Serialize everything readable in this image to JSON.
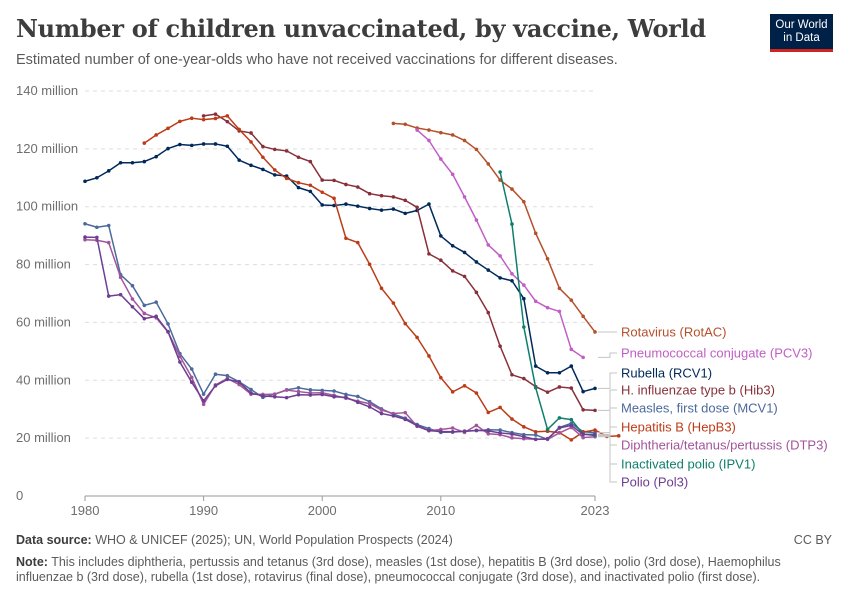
{
  "header": {
    "title": "Number of children unvaccinated, by vaccine, World",
    "subtitle": "Estimated number of one-year-olds who have not received vaccinations for different diseases.",
    "logo_line1": "Our World",
    "logo_line2": "in Data"
  },
  "footer": {
    "source_label": "Data source:",
    "source_text": "WHO & UNICEF (2025); UN, World Population Prospects (2024)",
    "license": "CC BY",
    "note_label": "Note:",
    "note_text": "This includes diphtheria, pertussis and tetanus (3rd dose), measles (1st dose), hepatitis B (3rd dose), polio (3rd dose), Haemophilus influenzae b (3rd dose), rubella (1st dose), rotavirus (final dose), pneumococcal conjugate (3rd dose), and inactivated polio (first dose)."
  },
  "chart_data": {
    "type": "line",
    "xlim": [
      1980,
      2023
    ],
    "ylim": [
      0,
      140000000
    ],
    "grid": "horizontal dashed",
    "legend": "right, labels at line ends",
    "x_ticks": [
      {
        "value": 1980,
        "label": "1980"
      },
      {
        "value": 1990,
        "label": "1990"
      },
      {
        "value": 2000,
        "label": "2000"
      },
      {
        "value": 2010,
        "label": "2010"
      },
      {
        "value": 2023,
        "label": "2023"
      }
    ],
    "y_ticks": [
      {
        "value": 0,
        "label": "0"
      },
      {
        "value": 20000000,
        "label": "20 million"
      },
      {
        "value": 40000000,
        "label": "40 million"
      },
      {
        "value": 60000000,
        "label": "60 million"
      },
      {
        "value": 80000000,
        "label": "80 million"
      },
      {
        "value": 100000000,
        "label": "100 million"
      },
      {
        "value": 120000000,
        "label": "120 million"
      },
      {
        "value": 140000000,
        "label": "140 million"
      }
    ],
    "series": [
      {
        "name": "Rotavirus (RotAC)",
        "color": "#b4502b",
        "start": 2006,
        "values": [
          128.8,
          128.5,
          127.2,
          126.5,
          125.6,
          124.8,
          122.9,
          119.8,
          114.8,
          109.2,
          106.1,
          101.7,
          90.8,
          82.0,
          71.8,
          67.7,
          62.1,
          56.7
        ]
      },
      {
        "name": "Pneumococcal conjugate (PCV3)",
        "color": "#c15ec6",
        "start": 2008,
        "values": [
          126.5,
          122.9,
          116.5,
          111.2,
          103.4,
          95.4,
          86.8,
          83.0,
          76.8,
          72.9,
          67.3,
          65.1,
          63.8,
          50.7,
          47.9
        ]
      },
      {
        "name": "Rubella (RCV1)",
        "color": "#00295b",
        "start": 1980,
        "values": [
          108.8,
          110.0,
          112.4,
          115.2,
          115.2,
          115.6,
          117.3,
          120.1,
          121.5,
          121.2,
          121.7,
          121.7,
          120.9,
          116.1,
          114.3,
          112.9,
          111.0,
          110.6,
          106.6,
          105.3,
          100.6,
          100.4,
          100.9,
          100.2,
          99.4,
          98.8,
          99.2,
          97.7,
          98.7,
          100.9,
          89.9,
          86.5,
          84.2,
          80.9,
          78.1,
          75.4,
          74.4,
          68.2,
          44.9,
          42.6,
          42.6,
          44.9,
          36.1,
          37.2
        ]
      },
      {
        "name": "H. influenzae type b (Hib3)",
        "color": "#883039",
        "start": 1990,
        "values": [
          131.4,
          132.0,
          129.4,
          126.2,
          125.5,
          120.8,
          119.8,
          119.3,
          117.1,
          115.6,
          109.2,
          109.1,
          107.7,
          106.8,
          104.5,
          103.8,
          103.4,
          102.2,
          99.8,
          83.7,
          81.5,
          77.8,
          75.9,
          70.4,
          63.4,
          51.8,
          41.9,
          40.6,
          37.8,
          35.9,
          37.7,
          37.3,
          29.8,
          29.6
        ]
      },
      {
        "name": "Measles, first dose (MCV1)",
        "color": "#4c6a9c",
        "start": 1980,
        "values": [
          94.1,
          92.9,
          93.5,
          76.5,
          72.7,
          65.9,
          67.0,
          59.5,
          49.2,
          43.9,
          35.2,
          42.1,
          41.6,
          39.5,
          36.8,
          34.1,
          35.2,
          36.7,
          37.4,
          36.7,
          36.5,
          36.3,
          35.1,
          34.4,
          32.6,
          30.1,
          28.3,
          26.9,
          24.7,
          23.3,
          22.0,
          22.1,
          22.4,
          22.6,
          22.9,
          22.8,
          21.9,
          21.2,
          21.1,
          19.6,
          23.7,
          25.1,
          22.2,
          21.9
        ]
      },
      {
        "name": "Hepatitis B (HepB3)",
        "color": "#bc3c18",
        "start": 1985,
        "values": [
          122.0,
          124.8,
          127.1,
          129.5,
          130.6,
          130.1,
          130.5,
          131.4,
          126.7,
          122.4,
          117.1,
          112.7,
          109.8,
          108.3,
          107.4,
          105.0,
          102.9,
          89.1,
          87.6,
          80.1,
          71.8,
          66.7,
          59.6,
          54.8,
          48.4,
          40.9,
          36.0,
          38.1,
          35.6,
          28.9,
          30.6,
          26.6,
          23.9,
          22.2,
          22.4,
          21.9,
          19.4,
          22.1,
          22.8,
          20.6,
          20.8
        ]
      },
      {
        "name": "Diphtheria/tetanus/pertussis (DTP3)",
        "color": "#a2559c",
        "start": 1980,
        "values": [
          88.6,
          88.4,
          87.6,
          75.6,
          68.1,
          63.1,
          61.6,
          56.7,
          48.3,
          41.0,
          31.7,
          38.4,
          40.6,
          38.5,
          35.2,
          35.1,
          35.2,
          36.6,
          36.1,
          35.6,
          35.7,
          34.8,
          33.8,
          32.8,
          31.9,
          29.7,
          28.5,
          28.8,
          24.1,
          22.6,
          23.0,
          23.5,
          22.0,
          24.4,
          21.5,
          21.2,
          20.1,
          19.8,
          19.6,
          19.6,
          21.8,
          23.7,
          20.2,
          20.5
        ]
      },
      {
        "name": "Inactivated polio (IPV1)",
        "color": "#0f7f6b",
        "start": 2015,
        "values": [
          112.0,
          94.0,
          58.4,
          37.4,
          23.0,
          27.0,
          26.4,
          21.4,
          20.9
        ]
      },
      {
        "name": "Polio (Pol3)",
        "color": "#6d3e91",
        "start": 1980,
        "values": [
          89.5,
          89.4,
          69.1,
          69.6,
          65.4,
          61.3,
          62.1,
          56.8,
          46.3,
          39.3,
          32.9,
          38.1,
          40.3,
          39.4,
          35.6,
          34.6,
          34.3,
          34.0,
          35.0,
          34.9,
          35.1,
          34.3,
          34.1,
          32.4,
          30.8,
          28.5,
          27.7,
          26.5,
          24.3,
          22.6,
          22.3,
          22.2,
          22.4,
          22.7,
          22.5,
          21.8,
          21.4,
          20.5,
          19.6,
          19.8,
          23.5,
          24.4,
          21.3,
          21.3
        ]
      }
    ]
  }
}
